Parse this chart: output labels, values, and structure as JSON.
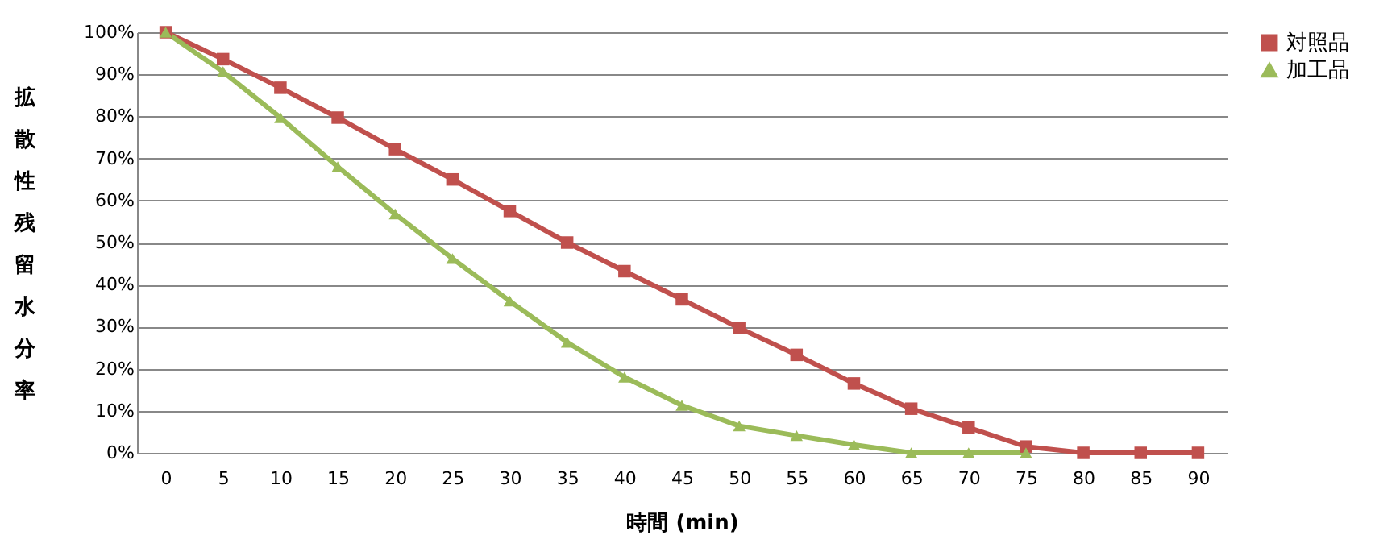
{
  "chart_data": {
    "type": "line",
    "xlabel": "時間 (min)",
    "ylabel": "拡散性残留水分率",
    "categories": [
      "0",
      "5",
      "10",
      "15",
      "20",
      "25",
      "30",
      "35",
      "40",
      "45",
      "50",
      "55",
      "60",
      "65",
      "70",
      "75",
      "80",
      "85",
      "90"
    ],
    "series": [
      {
        "name": "対照品",
        "color": "#c0504d",
        "marker": "square",
        "values": [
          100,
          93.6,
          86.8,
          79.7,
          72.2,
          65,
          57.5,
          50,
          43.2,
          36.5,
          29.7,
          23.3,
          16.5,
          10.5,
          6,
          1.5,
          0,
          0,
          0
        ]
      },
      {
        "name": "加工品",
        "color": "#9bbb59",
        "marker": "triangle",
        "values": [
          100,
          90.6,
          79.7,
          68,
          56.8,
          46.2,
          36.1,
          26.3,
          18,
          11.3,
          6.4,
          4.1,
          1.9,
          0,
          0,
          0,
          null,
          null,
          null
        ]
      }
    ],
    "ylim": [
      0,
      100
    ],
    "yticks": [
      {
        "value": 0,
        "label": "0%"
      },
      {
        "value": 10,
        "label": "10%"
      },
      {
        "value": 20,
        "label": "20%"
      },
      {
        "value": 30,
        "label": "30%"
      },
      {
        "value": 40,
        "label": "40%"
      },
      {
        "value": 50,
        "label": "50%"
      },
      {
        "value": 60,
        "label": "60%"
      },
      {
        "value": 70,
        "label": "70%"
      },
      {
        "value": 80,
        "label": "80%"
      },
      {
        "value": 90,
        "label": "90%"
      },
      {
        "value": 100,
        "label": "100%"
      }
    ],
    "grid": "y",
    "legend": "top right",
    "line_style": "solid"
  }
}
